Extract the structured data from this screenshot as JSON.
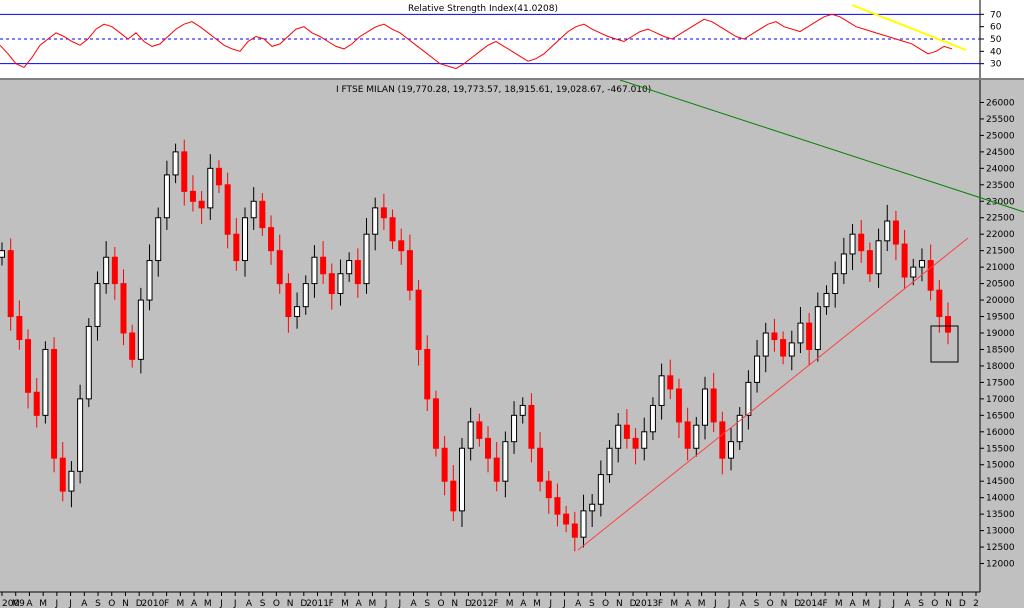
{
  "chart_data": [
    {
      "type": "line",
      "title": "Relative Strength Index(41.0208)",
      "ylim": [
        20,
        80
      ],
      "yticks": [
        30,
        40,
        50,
        60,
        70
      ],
      "reference_lines": [
        30,
        50,
        70
      ],
      "series": [
        {
          "values": [
            45,
            38,
            30,
            27,
            35,
            45,
            50,
            55,
            52,
            48,
            45,
            50,
            58,
            62,
            60,
            55,
            50,
            55,
            48,
            44,
            46,
            52,
            58,
            62,
            64,
            60,
            55,
            50,
            45,
            42,
            40,
            48,
            52,
            50,
            44,
            46,
            52,
            58,
            60,
            55,
            52,
            48,
            44,
            42,
            46,
            52,
            56,
            60,
            62,
            58,
            55,
            50,
            45,
            40,
            35,
            30,
            28,
            26,
            30,
            35,
            40,
            45,
            48,
            44,
            40,
            36,
            32,
            34,
            38,
            44,
            50,
            56,
            60,
            62,
            58,
            55,
            52,
            50,
            48,
            52,
            56,
            58,
            55,
            52,
            50,
            54,
            58,
            62,
            66,
            64,
            60,
            56,
            52,
            50,
            54,
            58,
            62,
            64,
            60,
            58,
            56,
            60,
            64,
            68,
            70,
            68,
            64,
            60,
            58,
            56,
            54,
            52,
            50,
            48,
            46,
            42,
            38,
            40,
            44,
            42
          ]
        }
      ],
      "trendline_color": "#ffff00",
      "line_color": "#ff0000"
    },
    {
      "type": "candlestick",
      "title": "I FTSE MILAN (19,770.28, 19,773.57, 18,915.61, 19,028.67, -467.010)",
      "ylim": [
        11500,
        26500
      ],
      "yticks": [
        12000,
        12500,
        13000,
        13500,
        14000,
        14500,
        15000,
        15500,
        16000,
        16500,
        17000,
        17500,
        18000,
        18500,
        19000,
        19500,
        20000,
        20500,
        21000,
        21500,
        22000,
        22500,
        23000,
        23500,
        24000,
        24500,
        25000,
        25500,
        26000
      ],
      "x_tick_labels": [
        "2009",
        "M",
        "A",
        "M",
        "J",
        "J",
        "A",
        "S",
        "O",
        "N",
        "D",
        "2010",
        "F",
        "M",
        "A",
        "M",
        "J",
        "J",
        "A",
        "S",
        "O",
        "N",
        "D",
        "2011",
        "F",
        "M",
        "A",
        "M",
        "J",
        "J",
        "A",
        "S",
        "O",
        "N",
        "D",
        "2012",
        "F",
        "M",
        "A",
        "M",
        "J",
        "J",
        "A",
        "S",
        "O",
        "N",
        "D",
        "2013",
        "F",
        "M",
        "A",
        "M",
        "J",
        "J",
        "A",
        "S",
        "O",
        "N",
        "D",
        "2014",
        "F",
        "M",
        "A",
        "M",
        "J",
        "J",
        "A",
        "S",
        "O",
        "N",
        "D",
        "2"
      ],
      "closes": [
        21500,
        19500,
        18800,
        17200,
        16500,
        18500,
        15200,
        14200,
        14800,
        17000,
        19200,
        20500,
        21300,
        20500,
        19000,
        18200,
        20000,
        21200,
        22500,
        23800,
        24500,
        23300,
        23000,
        22800,
        24000,
        23500,
        22000,
        21200,
        22500,
        23000,
        22200,
        21500,
        20500,
        19500,
        19800,
        20500,
        21300,
        20800,
        20200,
        20800,
        21200,
        20500,
        22000,
        22800,
        22500,
        21800,
        21500,
        20300,
        18500,
        17000,
        15500,
        14500,
        13600,
        15500,
        16300,
        15800,
        15200,
        14500,
        15700,
        16500,
        16800,
        15500,
        14500,
        14000,
        13500,
        13200,
        12800,
        13600,
        13800,
        14700,
        15500,
        16200,
        15800,
        15500,
        16000,
        16800,
        17700,
        17300,
        16300,
        15500,
        16200,
        17300,
        16300,
        15200,
        15700,
        16500,
        17500,
        18300,
        19000,
        18800,
        18300,
        18700,
        19300,
        18500,
        19800,
        20200,
        20800,
        21400,
        22000,
        21500,
        20800,
        21800,
        22400,
        21700,
        20700,
        21000,
        21200,
        20300,
        19500,
        19028
      ]
    }
  ]
}
